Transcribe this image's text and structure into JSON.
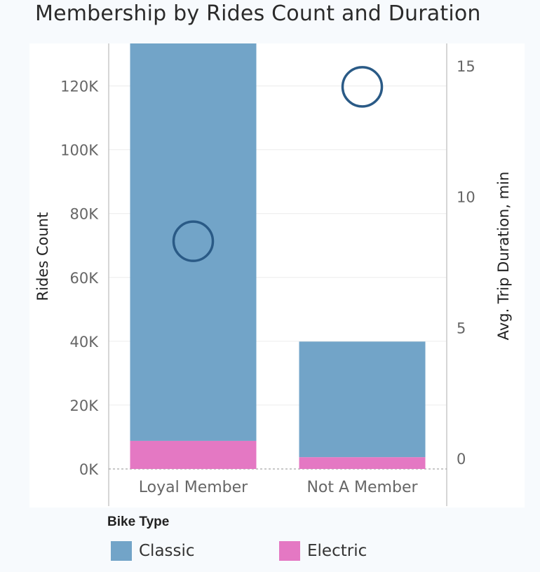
{
  "title": "Membership by Rides Count and Duration",
  "colors": {
    "classic": "#72a4c8",
    "electric": "#e478c3",
    "circle": "#2a5a86",
    "grid": "#ececec",
    "axis": "#c9c9c9",
    "text": "#666666"
  },
  "chart_data": {
    "type": "bar",
    "stacked": true,
    "categories": [
      "Loyal Member",
      "Not A Member"
    ],
    "series": [
      {
        "name": "Classic",
        "values": [
          124500,
          36200
        ]
      },
      {
        "name": "Electric",
        "values": [
          8800,
          3700
        ]
      }
    ],
    "overlay": {
      "type": "scatter",
      "axis": "right",
      "marker": "hollow-circle",
      "values": [
        8.3,
        14.2
      ]
    },
    "ylabel": "Rides Count",
    "y2label": "Avg. Trip Duration, min",
    "ylim": [
      0,
      133300
    ],
    "y2lim": [
      0,
      15
    ],
    "yticks": [
      0,
      20000,
      40000,
      60000,
      80000,
      100000,
      120000
    ],
    "ytick_labels": [
      "0K",
      "20K",
      "40K",
      "60K",
      "80K",
      "100K",
      "120K"
    ],
    "y2ticks": [
      0,
      5,
      10,
      15
    ],
    "y2tick_labels": [
      "0",
      "5",
      "10",
      "15"
    ],
    "grid": true,
    "legend_position": "bottom"
  },
  "legend": {
    "title": "Bike Type",
    "items": [
      {
        "label": "Classic",
        "color": "#72a4c8"
      },
      {
        "label": "Electric",
        "color": "#e478c3"
      }
    ]
  }
}
